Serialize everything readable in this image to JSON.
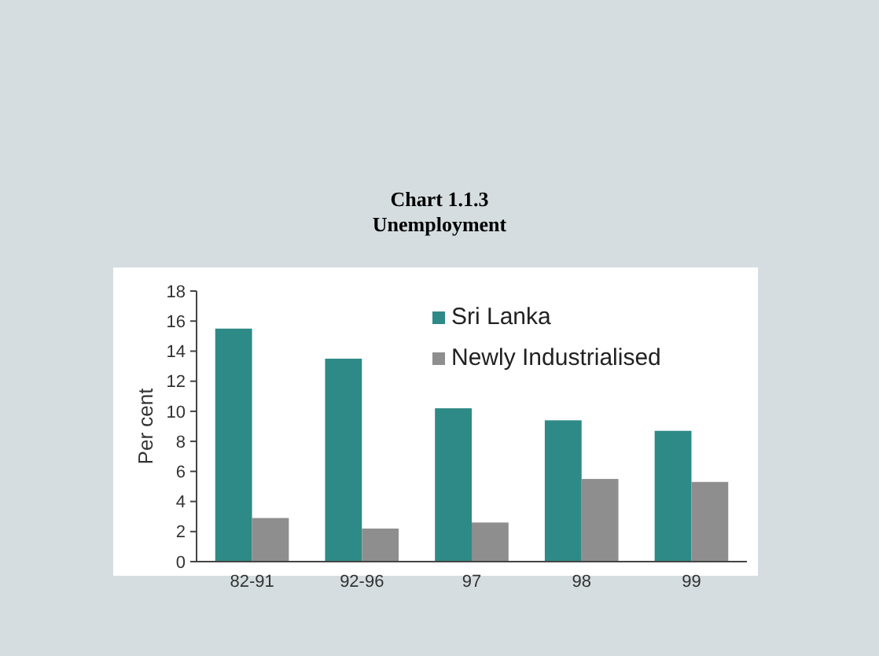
{
  "chart_data": {
    "type": "bar",
    "title": "Chart 1.1.3",
    "subtitle": "Unemployment",
    "ylabel": "Per cent",
    "categories": [
      "82-91",
      "92-96",
      "97",
      "98",
      "99"
    ],
    "series": [
      {
        "name": "Sri Lanka",
        "color": "#2e8a86",
        "values": [
          15.5,
          13.5,
          10.2,
          9.4,
          8.7
        ]
      },
      {
        "name": "Newly Industrialised",
        "color": "#8e8e8e",
        "values": [
          2.9,
          2.2,
          2.6,
          5.5,
          5.3
        ]
      }
    ],
    "ylim": [
      0,
      18
    ],
    "yticks": [
      0,
      2,
      4,
      6,
      8,
      10,
      12,
      14,
      16,
      18
    ],
    "legend": "top right",
    "grid": false
  }
}
